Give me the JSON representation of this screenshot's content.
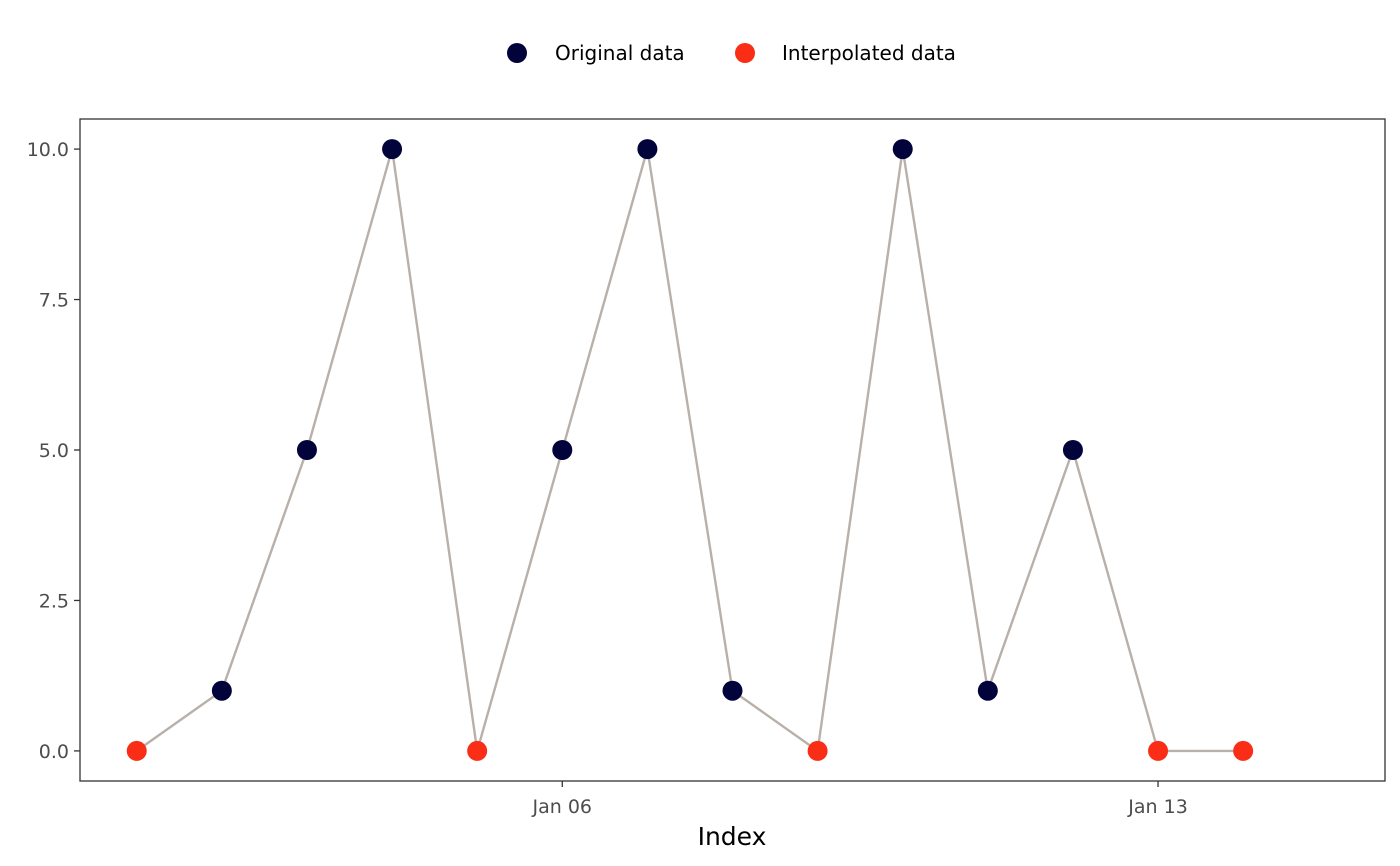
{
  "chart_data": {
    "type": "line",
    "title": "",
    "xlabel": "Index",
    "ylabel": "",
    "x_ticks": [
      {
        "date": "2024-01-06",
        "label": "Jan 06"
      },
      {
        "date": "2024-01-13",
        "label": "Jan 13"
      }
    ],
    "y_ticks": [
      "0.0",
      "2.5",
      "5.0",
      "7.5",
      "10.0"
    ],
    "ylim": [
      -0.5,
      10.5
    ],
    "xlim": [
      "2023-12-31T08:00",
      "2024-01-15T16:00"
    ],
    "grid": false,
    "legend_position": "top",
    "line_color": "#b9b0a9",
    "series": [
      {
        "name": "Original data",
        "color": "#03033b",
        "points": [
          {
            "x": "2024-01-02",
            "y": 1
          },
          {
            "x": "2024-01-03",
            "y": 5
          },
          {
            "x": "2024-01-04",
            "y": 10
          },
          {
            "x": "2024-01-06",
            "y": 5
          },
          {
            "x": "2024-01-07",
            "y": 10
          },
          {
            "x": "2024-01-08",
            "y": 1
          },
          {
            "x": "2024-01-10",
            "y": 10
          },
          {
            "x": "2024-01-11",
            "y": 1
          },
          {
            "x": "2024-01-12",
            "y": 5
          }
        ]
      },
      {
        "name": "Interpolated data",
        "color": "#fa2d17",
        "points": [
          {
            "x": "2024-01-01",
            "y": 0
          },
          {
            "x": "2024-01-05",
            "y": 0
          },
          {
            "x": "2024-01-09",
            "y": 0
          },
          {
            "x": "2024-01-13",
            "y": 0
          },
          {
            "x": "2024-01-14",
            "y": 0
          }
        ]
      }
    ]
  }
}
